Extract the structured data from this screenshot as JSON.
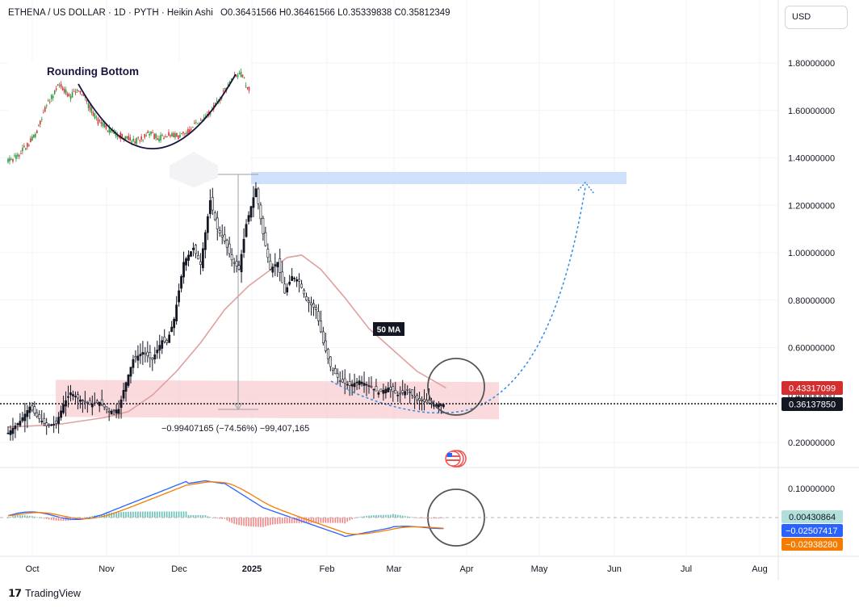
{
  "header": {
    "symbol": "ETHENA / US DOLLAR",
    "interval": "1D",
    "exchange": "PYTH",
    "chart_style": "Heikin Ashi",
    "ohlc": "O0.36461566  H0.36461566  L0.35339838  C0.35812349"
  },
  "currency_button": "USD",
  "footer_logo": "TradingView",
  "annotations": {
    "inset_title": "Rounding Bottom",
    "ma_label": "50 MA",
    "measure_label": "−0.99407165 (−74.56%) −99,407,165"
  },
  "price_axis": [
    "1.80000000",
    "1.60000000",
    "1.40000000",
    "1.20000000",
    "1.00000000",
    "0.80000000",
    "0.60000000",
    "0.40000000",
    "0.20000000"
  ],
  "price_badges": {
    "ma": "0.43317099",
    "last": "0.36137850"
  },
  "macd_axis": [
    "0.10000000"
  ],
  "macd_badges": {
    "histogram": "0.00430864",
    "macd": "−0.02507417",
    "signal": "−0.02938280"
  },
  "time_axis": [
    "Oct",
    "Nov",
    "Dec",
    "2025",
    "Feb",
    "Mar",
    "Apr",
    "May",
    "Jun",
    "Jul",
    "Aug"
  ],
  "colors": {
    "up": "#131722",
    "down": "#131722",
    "ma": "#e0a0a0",
    "zone_support": "#f8cdd1",
    "zone_target": "#cfe0fb",
    "macd_line": "#2962ff",
    "signal_line": "#f57c00",
    "hist_up": "#26a69a",
    "hist_down": "#ef5350",
    "projection": "#2d8ce6"
  },
  "chart_data": {
    "type": "line",
    "title": "ETHENA / US DOLLAR · 1D · PYTH · Heikin Ashi",
    "xlabel": "",
    "ylabel": "",
    "ylim": [
      0.13,
      1.98
    ],
    "x": [
      "Oct",
      "Nov",
      "Dec",
      "2025",
      "Feb",
      "Mar",
      "Apr"
    ],
    "series": [
      {
        "name": "",
        "values": [
          0.29,
          0.32,
          0.75,
          1.15,
          0.52,
          0.41,
          0.36
        ]
      },
      {
        "name": "50 MA",
        "values": [
          0.3,
          0.33,
          0.52,
          0.84,
          0.98,
          0.62,
          0.43
        ]
      }
    ],
    "macd": {
      "macd_last": -0.02507417,
      "signal_last": -0.0293828,
      "histogram_last": 0.00430864
    }
  }
}
